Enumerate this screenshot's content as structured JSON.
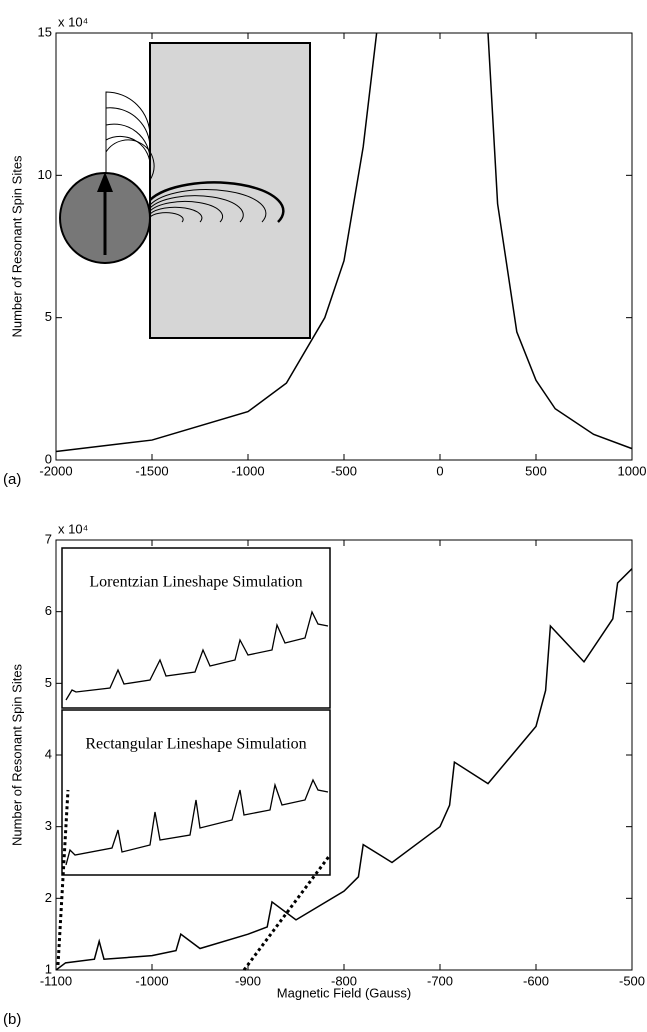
{
  "chart_data": [
    {
      "type": "line",
      "label": "(a)",
      "ylabel": "Number of Resonant Spin Sites",
      "y_multiplier": "x 10⁴",
      "x": [
        -2000,
        -1500,
        -1000,
        -800,
        -600,
        -500,
        -400,
        -330,
        0,
        250,
        300,
        400,
        500,
        600,
        800,
        1000
      ],
      "values": [
        0.3,
        0.7,
        1.7,
        2.7,
        5,
        7,
        11,
        15,
        null,
        15,
        9,
        4.5,
        2.8,
        1.8,
        0.9,
        0.4
      ],
      "color": "#000000",
      "xlim": [
        -2000,
        1000
      ],
      "xticks": [
        -2000,
        -1500,
        -1000,
        -500,
        0,
        500,
        1000
      ],
      "ylim": [
        0,
        15
      ],
      "yticks": [
        0,
        5,
        10,
        15
      ]
    },
    {
      "type": "line",
      "label": "(b)",
      "ylabel": "Number of Resonant Spin Sites",
      "xlabel": "Magnetic Field (Gauss)",
      "y_multiplier": "x 10⁴",
      "insets": [
        "Lorentzian Lineshape Simulation",
        "Rectangular Lineshape Simulation"
      ],
      "x": [
        -1100,
        -1090,
        -1060,
        -1055,
        -1050,
        -1000,
        -975,
        -970,
        -950,
        -900,
        -880,
        -875,
        -850,
        -800,
        -785,
        -780,
        -750,
        -700,
        -690,
        -685,
        -650,
        -600,
        -590,
        -585,
        -550,
        -520,
        -515,
        -500
      ],
      "values": [
        1.0,
        1.1,
        1.15,
        1.4,
        1.15,
        1.2,
        1.27,
        1.5,
        1.3,
        1.5,
        1.6,
        1.95,
        1.7,
        2.1,
        2.3,
        2.75,
        2.5,
        3.0,
        3.3,
        3.9,
        3.6,
        4.4,
        4.9,
        5.8,
        5.3,
        5.9,
        6.4,
        6.6
      ],
      "color": "#000000",
      "xlim": [
        -1100,
        -500
      ],
      "xticks": [
        -1100,
        -1000,
        -900,
        -800,
        -700,
        -600,
        -500
      ],
      "ylim": [
        1,
        7
      ],
      "yticks": [
        1,
        2,
        3,
        4,
        5,
        6,
        7
      ]
    }
  ]
}
